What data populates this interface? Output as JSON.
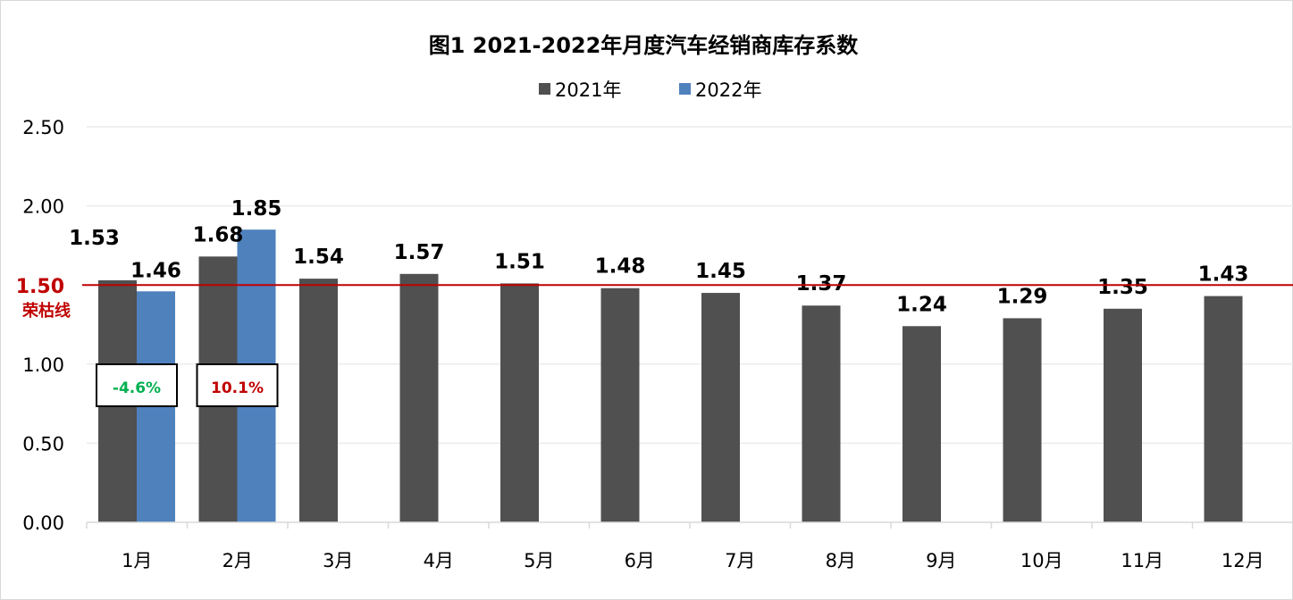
{
  "chart_data": {
    "type": "bar",
    "title": "图1  2021-2022年月度汽车经销商库存系数",
    "categories": [
      "1月",
      "2月",
      "3月",
      "4月",
      "5月",
      "6月",
      "7月",
      "8月",
      "9月",
      "10月",
      "11月",
      "12月"
    ],
    "series": [
      {
        "name": "2021年",
        "color": "#505050",
        "values": [
          1.53,
          1.68,
          1.54,
          1.57,
          1.51,
          1.48,
          1.45,
          1.37,
          1.24,
          1.29,
          1.35,
          1.43
        ]
      },
      {
        "name": "2022年",
        "color": "#4f81bd",
        "values": [
          1.46,
          1.85,
          null,
          null,
          null,
          null,
          null,
          null,
          null,
          null,
          null,
          null
        ]
      }
    ],
    "ylim": [
      0,
      2.5
    ],
    "yticks": [
      "0.00",
      "0.50",
      "1.00",
      "1.50",
      "2.00",
      "2.50"
    ],
    "grid": true,
    "legend": "top-center",
    "reference_line": {
      "value": 1.5,
      "value_label": "1.50",
      "label": "荣枯线",
      "color": "#c00000"
    },
    "annotations": [
      {
        "category": "1月",
        "text": "-4.6%",
        "color": "#00b050"
      },
      {
        "category": "2月",
        "text": "10.1%",
        "color": "#c00000"
      }
    ]
  }
}
